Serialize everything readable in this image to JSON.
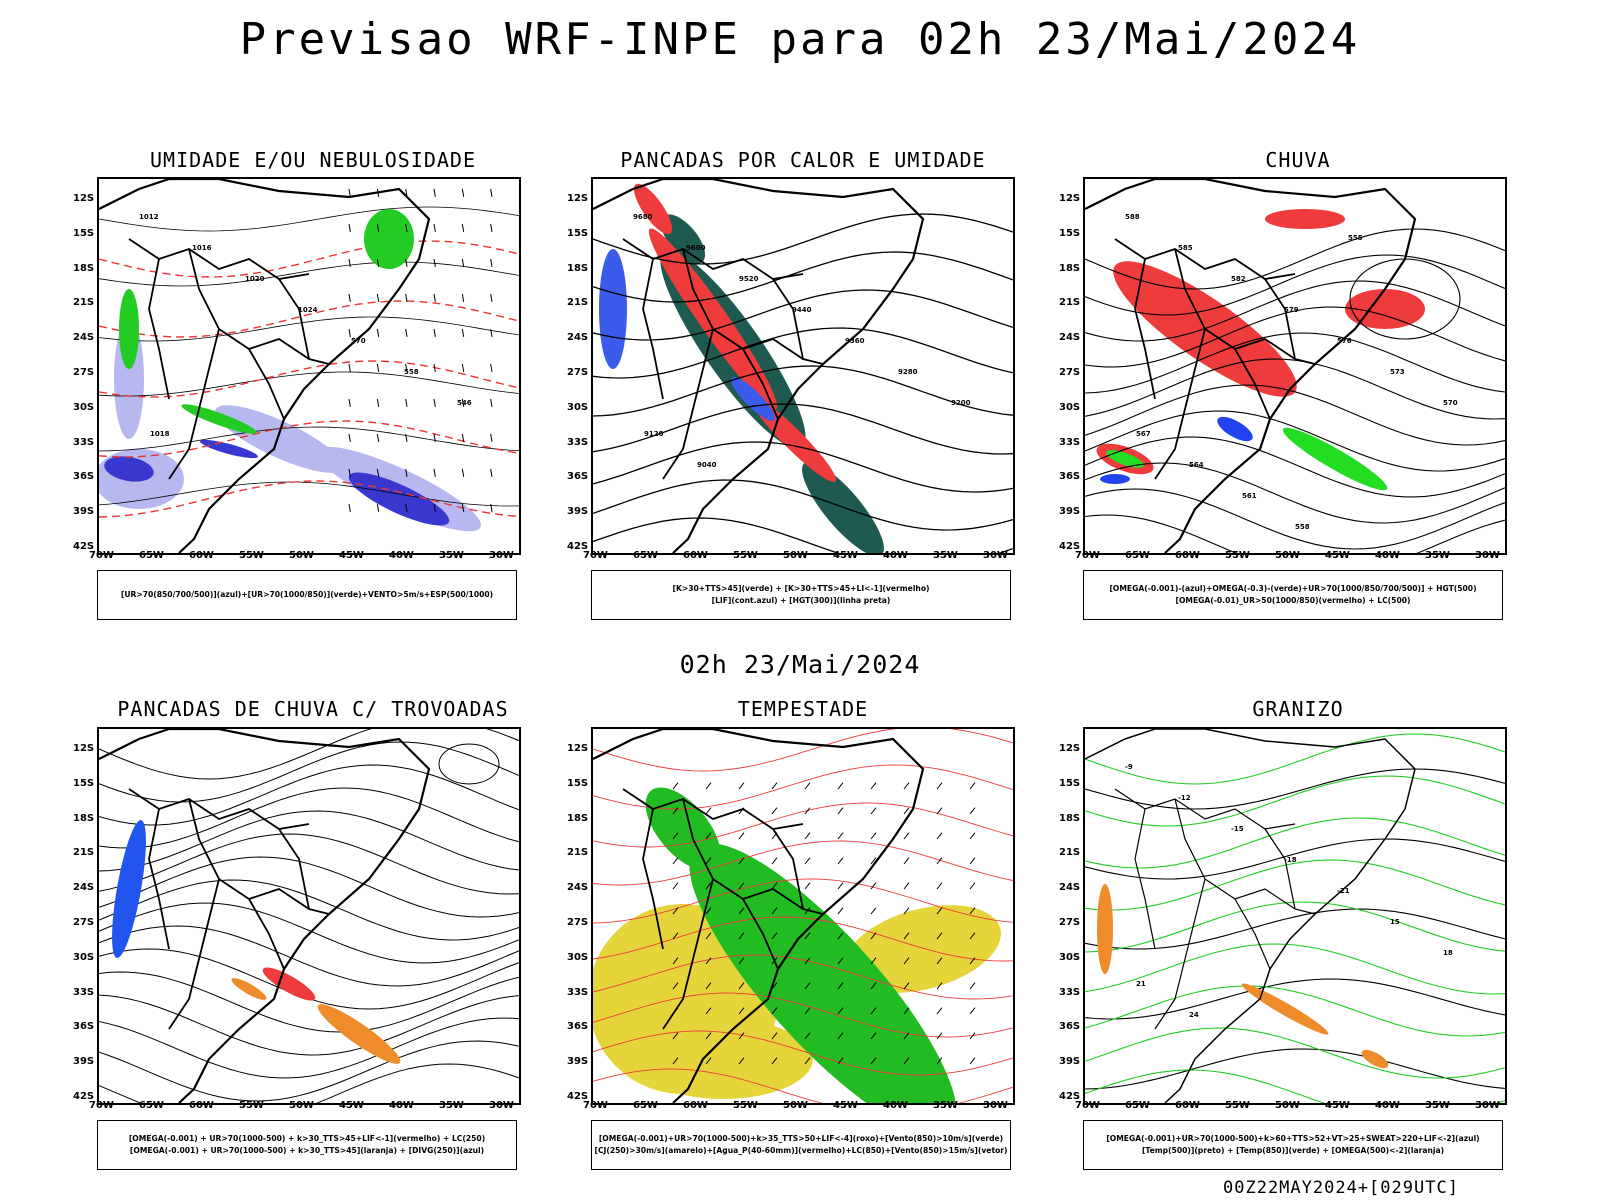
{
  "page": {
    "title": "Previsao WRF-INPE  para 02h 23/Mai/2024",
    "subtitle": "02h 23/Mai/2024",
    "footer": "00Z22MAY2024+[029UTC]"
  },
  "axes": {
    "lat_labels": [
      "12S",
      "15S",
      "18S",
      "21S",
      "24S",
      "27S",
      "30S",
      "33S",
      "36S",
      "39S",
      "42S"
    ],
    "lon_labels": [
      "70W",
      "65W",
      "60W",
      "55W",
      "50W",
      "45W",
      "40W",
      "35W",
      "30W"
    ]
  },
  "panels": [
    {
      "title": "UMIDADE E/OU NEBULOSIDADE",
      "legend": [
        "[UR>70(850/700/500)](azul)+[UR>70(1000/850)](verde)+VENTO>5m/s+ESP(500/1000)"
      ],
      "contour_labels": [
        "1012",
        "1016",
        "1020",
        "1024",
        "570",
        "558",
        "546",
        "1018"
      ],
      "colors": {
        "humidity_upper": "#b8b8f0",
        "humidity_core": "#3838d0",
        "humidity_low": "#22cc22",
        "thickness": "#ee3333"
      }
    },
    {
      "title": "PANCADAS POR CALOR E UMIDADE",
      "legend": [
        "[K>30+TTS>45](verde) + [K>30+TTS>45+LI<-1](vermelho)",
        "[LIF](cont.azul) + [HGT(300)](linha preta)"
      ],
      "contour_labels": [
        "9680",
        "9600",
        "9520",
        "9440",
        "9360",
        "9280",
        "9200",
        "9120",
        "9040"
      ],
      "colors": {
        "heat_green": "#1f5a50",
        "heat_red": "#ee3b3b",
        "lif": "#3b5bea"
      }
    },
    {
      "title": "CHUVA",
      "legend": [
        "[OMEGA(-0.001)-(azul)+OMEGA(-0.3)-(verde)+UR>70(1000/850/700/500)] + HGT(500)",
        "[OMEGA(-0.01)_UR>50(1000/850)(vermelho) + LC(500)"
      ],
      "contour_labels": [
        "588",
        "585",
        "582",
        "579",
        "576",
        "573",
        "570",
        "567",
        "564",
        "561",
        "558",
        "555"
      ],
      "colors": {
        "rain_red": "#ee3b3b",
        "rain_green": "#22dd22",
        "rain_blue": "#2244ee"
      }
    },
    {
      "title": "PANCADAS DE CHUVA C/ TROVOADAS",
      "legend": [
        "[OMEGA(-0.001) + UR>70(1000-500) + k>30_TTS>45+LIF<-1](vermelho) + LC(250)",
        "[OMEGA(-0.001) + UR>70(1000-500) + k>30_TTS>45](laranja) + [DIVG(250)](azul)"
      ],
      "colors": {
        "storm_red": "#ee3b3b",
        "storm_orange": "#ee8b2b",
        "divg": "#2255ee"
      }
    },
    {
      "title": "TEMPESTADE",
      "legend": [
        "[OMEGA(-0.001)+UR>70(1000-500)+k>35_TTS>50+LIF<-4](roxo)+[Vento(850)>10m/s](verde)",
        "[CJ(250)>30m/s](amarelo)+[Agua_P(40-60mm)](vermelho)+LC(850)+[Vento(850)>15m/s](vetor)"
      ],
      "colors": {
        "jet_yellow": "#e6d53a",
        "wind_green": "#22bb22",
        "streamlines": "#ee3b3b"
      }
    },
    {
      "title": "GRANIZO",
      "legend": [
        "[OMEGA(-0.001)+UR>70(1000-500)+k>60+TTS>52+VT>25+SWEAT>220+LIF<-2](azul)",
        "[Temp(500)](preto) + [Temp(850)](verde) + [OMEGA(500)<-2](laranja)"
      ],
      "contour_labels": [
        "-9",
        "-12",
        "-15",
        "-18",
        "-21",
        "15",
        "18",
        "21",
        "24"
      ],
      "colors": {
        "temp850": "#22cc22",
        "omega": "#ee8b2b",
        "hail": "#2244ee"
      }
    }
  ]
}
